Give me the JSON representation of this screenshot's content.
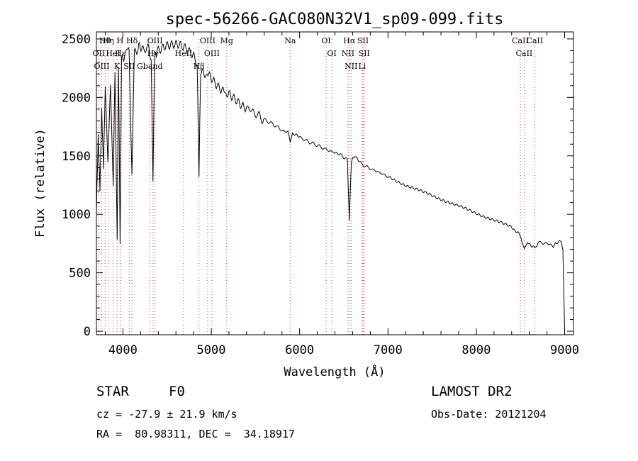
{
  "chart_data": {
    "type": "line",
    "title": "spec-56266-GAC080N32V1_sp09-099.fits",
    "xlabel": "Wavelength (Å)",
    "ylabel": "Flux (relative)",
    "xlim": [
      3700,
      9100
    ],
    "ylim": [
      -30,
      2560
    ],
    "xticks": [
      4000,
      5000,
      6000,
      7000,
      8000,
      9000
    ],
    "yticks": [
      0,
      500,
      1000,
      1500,
      2000,
      2500
    ],
    "xticklabels": [
      "4000",
      "5000",
      "6000",
      "7000",
      "8000",
      "9000"
    ],
    "yticklabels": [
      "0",
      "500",
      "1000",
      "1500",
      "2000",
      "2500"
    ],
    "grid": false,
    "series": [
      {
        "name": "flux",
        "x": [
          3700,
          3720,
          3740,
          3760,
          3780,
          3800,
          3830,
          3860,
          3890,
          3910,
          3935,
          3950,
          3968,
          3985,
          4010,
          4040,
          4070,
          4102,
          4130,
          4170,
          4220,
          4290,
          4320,
          4340,
          4360,
          4400,
          4480,
          4560,
          4640,
          4720,
          4800,
          4840,
          4861,
          4880,
          4920,
          4980,
          5060,
          5140,
          5200,
          5280,
          5400,
          5500,
          5600,
          5700,
          5800,
          5870,
          5893,
          5920,
          6000,
          6100,
          6200,
          6300,
          6400,
          6480,
          6540,
          6563,
          6585,
          6620,
          6700,
          6800,
          6900,
          7000,
          7200,
          7400,
          7600,
          7800,
          8000,
          8200,
          8400,
          8498,
          8542,
          8580,
          8662,
          8700,
          8800,
          8870,
          8920,
          8960,
          8980,
          9000
        ],
        "y": [
          1050,
          1700,
          1250,
          1900,
          1400,
          2050,
          1500,
          2100,
          1200,
          2200,
          780,
          2250,
          800,
          2300,
          2350,
          2400,
          2380,
          1300,
          2400,
          2420,
          2430,
          2400,
          2350,
          1290,
          2400,
          2420,
          2460,
          2450,
          2430,
          2400,
          2360,
          2300,
          1320,
          2250,
          2220,
          2180,
          2120,
          2070,
          2020,
          1990,
          1920,
          1860,
          1810,
          1770,
          1720,
          1700,
          1620,
          1690,
          1660,
          1620,
          1590,
          1555,
          1525,
          1500,
          1470,
          950,
          1450,
          1500,
          1430,
          1390,
          1360,
          1320,
          1250,
          1190,
          1130,
          1070,
          1010,
          950,
          890,
          820,
          700,
          760,
          710,
          760,
          750,
          730,
          760,
          780,
          700,
          0
        ]
      }
    ],
    "line_markers": [
      {
        "label": "Hθ",
        "x": 3798
      },
      {
        "label": "OII",
        "x": 3727
      },
      {
        "label": "OIII",
        "x": 3760
      },
      {
        "label": "Hη",
        "x": 3835
      },
      {
        "label": "HeI",
        "x": 3889
      },
      {
        "label": "K",
        "x": 3934
      },
      {
        "label": "H",
        "x": 3969
      },
      {
        "label": "Hε",
        "x": 3970
      },
      {
        "label": "Hδ",
        "x": 4102
      },
      {
        "label": "SII",
        "x": 4072
      },
      {
        "label": "OIII",
        "x": 4363
      },
      {
        "label": "Hγ",
        "x": 4341
      },
      {
        "label": "Gband",
        "x": 4304
      },
      {
        "label": "OIII",
        "x": 4959
      },
      {
        "label": "OIII",
        "x": 5007
      },
      {
        "label": "Hβ",
        "x": 4861
      },
      {
        "label": "HeII",
        "x": 4686
      },
      {
        "label": "Mg",
        "x": 5175
      },
      {
        "label": "Na",
        "x": 5893
      },
      {
        "label": "OI",
        "x": 6300
      },
      {
        "label": "OI",
        "x": 6364
      },
      {
        "label": "Hα",
        "x": 6563
      },
      {
        "label": "NII",
        "x": 6548
      },
      {
        "label": "NII",
        "x": 6583
      },
      {
        "label": "SII",
        "x": 6717
      },
      {
        "label": "SII",
        "x": 6731
      },
      {
        "label": "Li",
        "x": 6708
      },
      {
        "label": "CaII",
        "x": 8498
      },
      {
        "label": "CaII",
        "x": 8542
      },
      {
        "label": "CaII",
        "x": 8662
      }
    ]
  },
  "footer": {
    "object_type": "STAR",
    "subclass": "F0",
    "survey": "LAMOST DR2",
    "redshift_line": "cz = -27.9 ± 21.9 km/s",
    "obs_date": "Obs-Date: 20121204",
    "coords": "RA =  80.98311, DEC =  34.18917"
  }
}
